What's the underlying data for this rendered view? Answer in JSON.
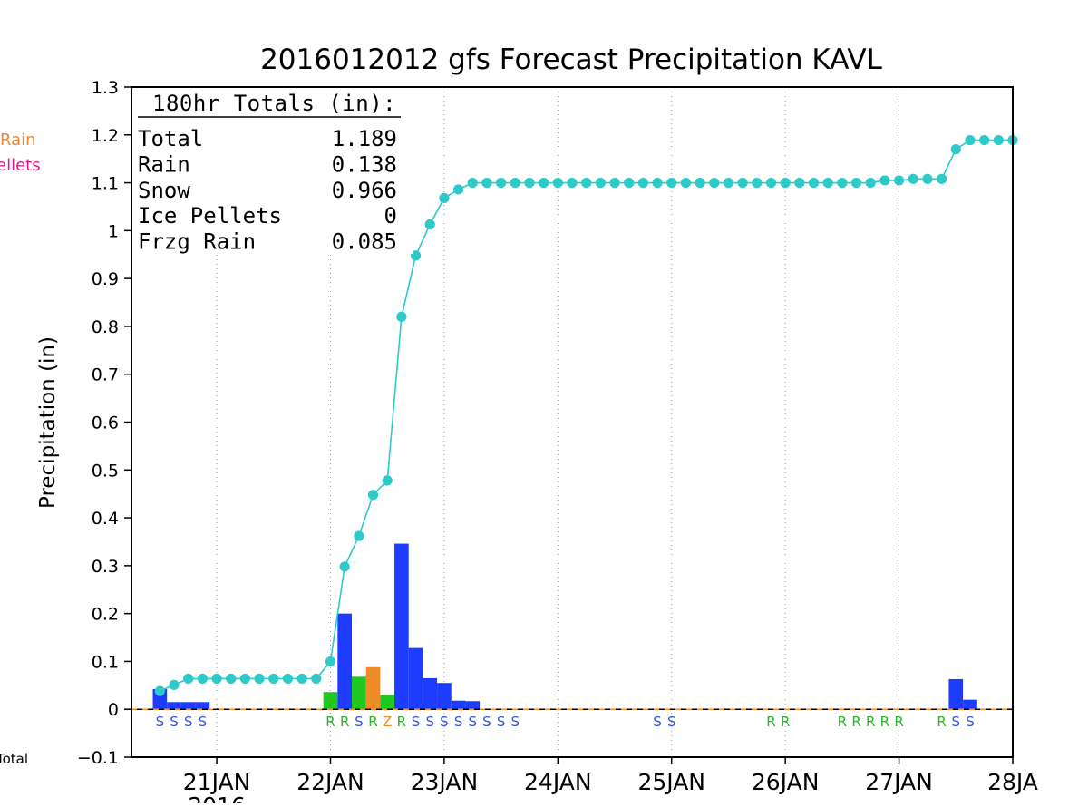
{
  "chart_data": {
    "type": "bar",
    "title": "2016012012 gfs Forecast Precipitation KAVL",
    "ylabel": "Precipitation (in)",
    "xlabel": "",
    "ylim": [
      -0.1,
      1.3
    ],
    "yticks": [
      -0.1,
      0,
      0.1,
      0.2,
      0.3,
      0.4,
      0.5,
      0.6,
      0.7,
      0.8,
      0.9,
      1,
      1.1,
      1.2,
      1.3
    ],
    "ytick_labels": [
      "−0.1",
      "0",
      "0.1",
      "0.2",
      "0.3",
      "0.4",
      "0.5",
      "0.6",
      "0.7",
      "0.8",
      "0.9",
      "1",
      "1.1",
      "1.2",
      "1.3"
    ],
    "x_unit": "hours",
    "xlim": [
      -6,
      180
    ],
    "x_tick_hours": [
      12,
      36,
      60,
      84,
      108,
      132,
      156,
      180
    ],
    "x_tick_labels": [
      "21JAN",
      "22JAN",
      "23JAN",
      "24JAN",
      "25JAN",
      "26JAN",
      "27JAN",
      "28JA"
    ],
    "year_label_fragment": "2016",
    "grid": "vertical dotted at day boundaries",
    "legend": {
      "fragments": [
        "Rain",
        "ellets",
        "Total"
      ],
      "colors": [
        "#e8883a",
        "#e0188c",
        "#000000"
      ],
      "placement": "left edge (clipped)"
    },
    "totals_box": {
      "header": "180hr Totals (in):",
      "rows": [
        {
          "label": "Total",
          "value": "1.189"
        },
        {
          "label": "Rain",
          "value": "0.138"
        },
        {
          "label": "Snow",
          "value": "0.966"
        },
        {
          "label": "Ice Pellets",
          "value": "0"
        },
        {
          "label": "Frzg Rain",
          "value": "0.085"
        }
      ]
    },
    "type_colors": {
      "S": "#1e3cff",
      "R": "#1ec81e",
      "Z": "#f08c28"
    },
    "label_colors": {
      "S": "#3355ee",
      "R": "#22bb22",
      "Z": "#f08c28"
    },
    "bars": [
      {
        "hour": 0,
        "value": 0.042,
        "type": "S"
      },
      {
        "hour": 3,
        "value": 0.015,
        "type": "S"
      },
      {
        "hour": 6,
        "value": 0.015,
        "type": "S"
      },
      {
        "hour": 9,
        "value": 0.015,
        "type": "S"
      },
      {
        "hour": 36,
        "value": 0.036,
        "type": "R"
      },
      {
        "hour": 39,
        "value": 0.2,
        "type": "S"
      },
      {
        "hour": 42,
        "value": 0.068,
        "type": "R"
      },
      {
        "hour": 45,
        "value": 0.088,
        "type": "Z"
      },
      {
        "hour": 48,
        "value": 0.03,
        "type": "R"
      },
      {
        "hour": 51,
        "value": 0.346,
        "type": "S"
      },
      {
        "hour": 54,
        "value": 0.128,
        "type": "S"
      },
      {
        "hour": 57,
        "value": 0.065,
        "type": "S"
      },
      {
        "hour": 60,
        "value": 0.055,
        "type": "S"
      },
      {
        "hour": 63,
        "value": 0.018,
        "type": "S"
      },
      {
        "hour": 66,
        "value": 0.017,
        "type": "S"
      },
      {
        "hour": 168,
        "value": 0.063,
        "type": "S"
      },
      {
        "hour": 171,
        "value": 0.02,
        "type": "S"
      }
    ],
    "type_labels": [
      {
        "hour": 0,
        "t": "S"
      },
      {
        "hour": 3,
        "t": "S"
      },
      {
        "hour": 6,
        "t": "S"
      },
      {
        "hour": 9,
        "t": "S"
      },
      {
        "hour": 36,
        "t": "R"
      },
      {
        "hour": 39,
        "t": "R"
      },
      {
        "hour": 42,
        "t": "S"
      },
      {
        "hour": 45,
        "t": "R"
      },
      {
        "hour": 48,
        "t": "Z"
      },
      {
        "hour": 51,
        "t": "R"
      },
      {
        "hour": 54,
        "t": "S"
      },
      {
        "hour": 57,
        "t": "S"
      },
      {
        "hour": 60,
        "t": "S"
      },
      {
        "hour": 63,
        "t": "S"
      },
      {
        "hour": 66,
        "t": "S"
      },
      {
        "hour": 69,
        "t": "S"
      },
      {
        "hour": 72,
        "t": "S"
      },
      {
        "hour": 75,
        "t": "S"
      },
      {
        "hour": 105,
        "t": "S"
      },
      {
        "hour": 108,
        "t": "S"
      },
      {
        "hour": 129,
        "t": "R"
      },
      {
        "hour": 132,
        "t": "R"
      },
      {
        "hour": 144,
        "t": "R"
      },
      {
        "hour": 147,
        "t": "R"
      },
      {
        "hour": 150,
        "t": "R"
      },
      {
        "hour": 153,
        "t": "R"
      },
      {
        "hour": 156,
        "t": "R"
      },
      {
        "hour": 165,
        "t": "R"
      },
      {
        "hour": 168,
        "t": "S"
      },
      {
        "hour": 171,
        "t": "S"
      }
    ],
    "series": [
      {
        "name": "Total",
        "color": "#2ec9c9",
        "x": [
          0,
          3,
          6,
          9,
          12,
          15,
          18,
          21,
          24,
          27,
          30,
          33,
          36,
          39,
          42,
          45,
          48,
          51,
          54,
          57,
          60,
          63,
          66,
          69,
          72,
          75,
          78,
          81,
          84,
          87,
          90,
          93,
          96,
          99,
          102,
          105,
          108,
          111,
          114,
          117,
          120,
          123,
          126,
          129,
          132,
          135,
          138,
          141,
          144,
          147,
          150,
          153,
          156,
          159,
          162,
          165,
          168,
          171,
          174,
          177,
          180
        ],
        "values": [
          0.038,
          0.051,
          0.064,
          0.064,
          0.064,
          0.064,
          0.064,
          0.064,
          0.064,
          0.064,
          0.064,
          0.064,
          0.1,
          0.298,
          0.362,
          0.448,
          0.478,
          0.82,
          0.948,
          1.013,
          1.068,
          1.086,
          1.1,
          1.1,
          1.1,
          1.1,
          1.1,
          1.1,
          1.1,
          1.1,
          1.1,
          1.1,
          1.1,
          1.1,
          1.1,
          1.1,
          1.1,
          1.1,
          1.1,
          1.1,
          1.1,
          1.1,
          1.1,
          1.1,
          1.1,
          1.1,
          1.1,
          1.1,
          1.1,
          1.1,
          1.1,
          1.105,
          1.105,
          1.108,
          1.108,
          1.108,
          1.17,
          1.189,
          1.189,
          1.189,
          1.189
        ]
      }
    ],
    "zero_line": "dashed"
  }
}
